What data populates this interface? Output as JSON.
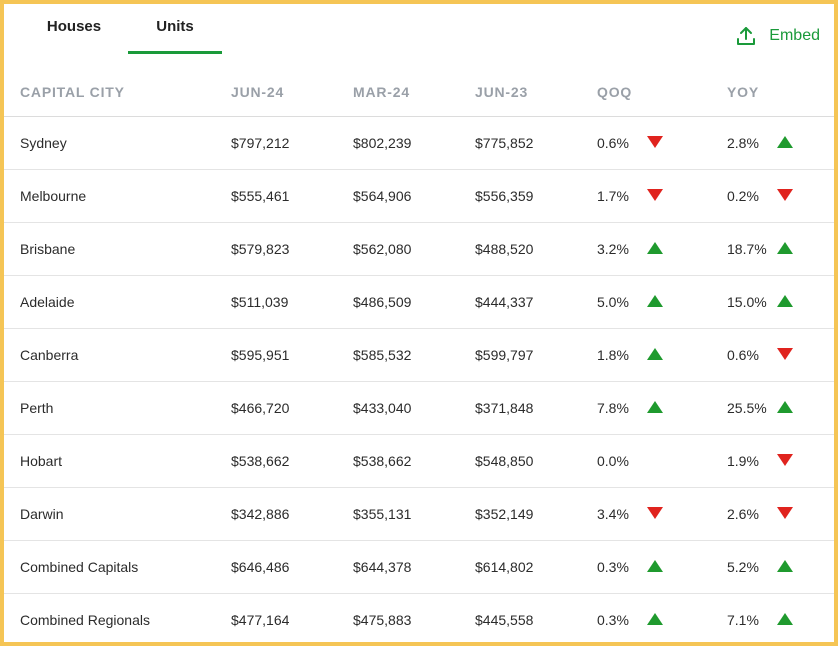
{
  "tabs": [
    {
      "label": "Houses",
      "active": false
    },
    {
      "label": "Units",
      "active": true
    }
  ],
  "embed": {
    "label": "Embed",
    "icon": "upload-icon",
    "color": "#1a9a3a"
  },
  "colors": {
    "frame": "#f5c555",
    "accent": "#1a9a3a",
    "up": "#1f9a2e",
    "down": "#e0231e"
  },
  "table": {
    "headers": [
      "CAPITAL CITY",
      "JUN-24",
      "MAR-24",
      "JUN-23",
      "QOQ",
      "YOY"
    ],
    "rows": [
      {
        "city": "Sydney",
        "jun24": "$797,212",
        "mar24": "$802,239",
        "jun23": "$775,852",
        "qoq": "0.6%",
        "qoq_dir": "down",
        "yoy": "2.8%",
        "yoy_dir": "up"
      },
      {
        "city": "Melbourne",
        "jun24": "$555,461",
        "mar24": "$564,906",
        "jun23": "$556,359",
        "qoq": "1.7%",
        "qoq_dir": "down",
        "yoy": "0.2%",
        "yoy_dir": "down"
      },
      {
        "city": "Brisbane",
        "jun24": "$579,823",
        "mar24": "$562,080",
        "jun23": "$488,520",
        "qoq": "3.2%",
        "qoq_dir": "up",
        "yoy": "18.7%",
        "yoy_dir": "up"
      },
      {
        "city": "Adelaide",
        "jun24": "$511,039",
        "mar24": "$486,509",
        "jun23": "$444,337",
        "qoq": "5.0%",
        "qoq_dir": "up",
        "yoy": "15.0%",
        "yoy_dir": "up"
      },
      {
        "city": "Canberra",
        "jun24": "$595,951",
        "mar24": "$585,532",
        "jun23": "$599,797",
        "qoq": "1.8%",
        "qoq_dir": "up",
        "yoy": "0.6%",
        "yoy_dir": "down"
      },
      {
        "city": "Perth",
        "jun24": "$466,720",
        "mar24": "$433,040",
        "jun23": "$371,848",
        "qoq": "7.8%",
        "qoq_dir": "up",
        "yoy": "25.5%",
        "yoy_dir": "up"
      },
      {
        "city": "Hobart",
        "jun24": "$538,662",
        "mar24": "$538,662",
        "jun23": "$548,850",
        "qoq": "0.0%",
        "qoq_dir": "none",
        "yoy": "1.9%",
        "yoy_dir": "down"
      },
      {
        "city": "Darwin",
        "jun24": "$342,886",
        "mar24": "$355,131",
        "jun23": "$352,149",
        "qoq": "3.4%",
        "qoq_dir": "down",
        "yoy": "2.6%",
        "yoy_dir": "down"
      },
      {
        "city": "Combined Capitals",
        "jun24": "$646,486",
        "mar24": "$644,378",
        "jun23": "$614,802",
        "qoq": "0.3%",
        "qoq_dir": "up",
        "yoy": "5.2%",
        "yoy_dir": "up"
      },
      {
        "city": "Combined Regionals",
        "jun24": "$477,164",
        "mar24": "$475,883",
        "jun23": "$445,558",
        "qoq": "0.3%",
        "qoq_dir": "up",
        "yoy": "7.1%",
        "yoy_dir": "up"
      }
    ]
  }
}
